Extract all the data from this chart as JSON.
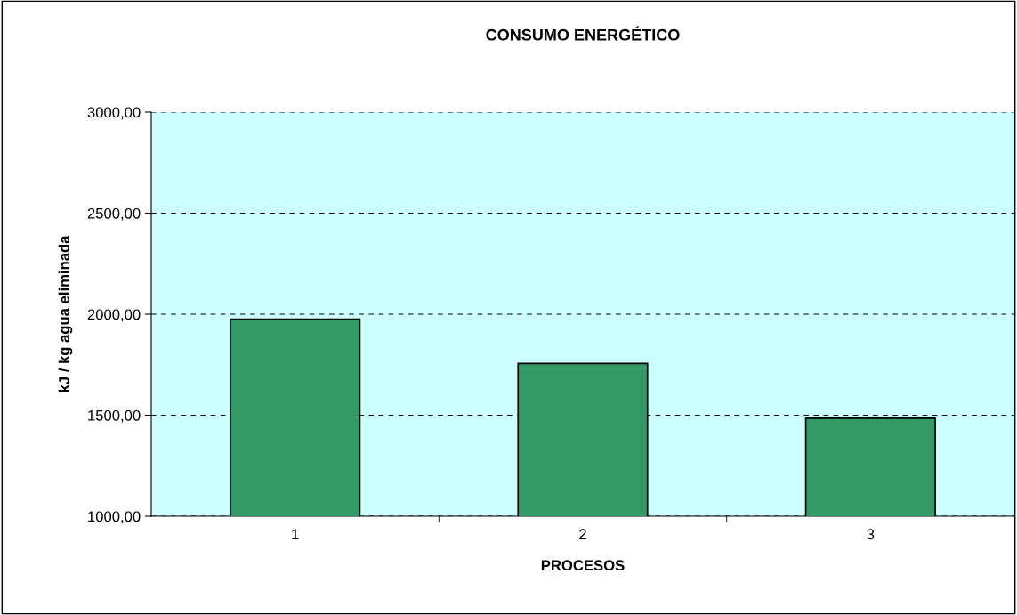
{
  "chart_data": {
    "type": "bar",
    "title": "CONSUMO ENERGÉTICO",
    "xlabel": "PROCESOS",
    "ylabel": "kJ / kg agua eliminada",
    "categories": [
      "1",
      "2",
      "3"
    ],
    "values": [
      1975,
      1756,
      1485
    ],
    "color": "#339966",
    "ylim": [
      1000,
      3000
    ],
    "yticks": [
      {
        "value": 1000,
        "label": "1000,00"
      },
      {
        "value": 1500,
        "label": "1500,00"
      },
      {
        "value": 2000,
        "label": "2000,00"
      },
      {
        "value": 2500,
        "label": "2500,00"
      },
      {
        "value": 3000,
        "label": "3000,00"
      }
    ],
    "grid": "y",
    "legend": false
  }
}
